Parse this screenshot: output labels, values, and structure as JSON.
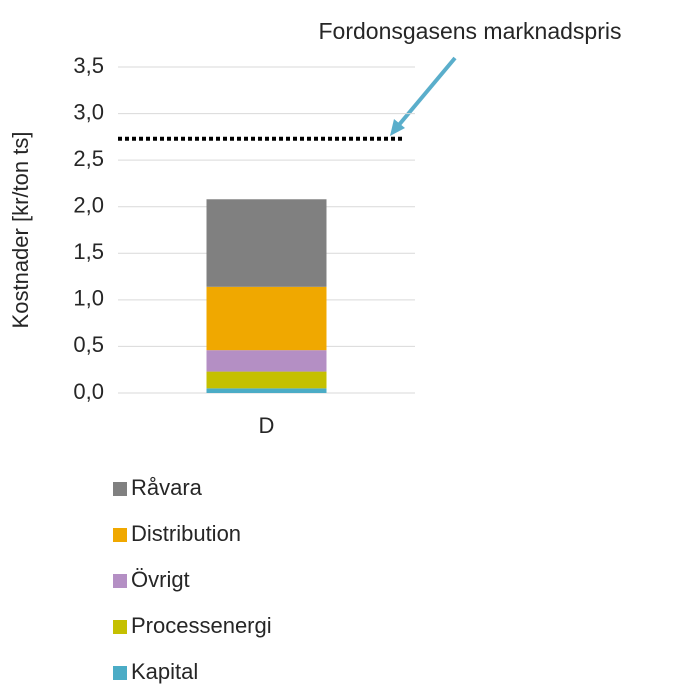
{
  "chart_data": {
    "type": "stacked_bar",
    "ylabel": "Kostnader [kr/ton ts]",
    "categories": [
      "D"
    ],
    "series": [
      {
        "name": "Kapital",
        "color": "#4bacc6",
        "values": [
          0.05
        ]
      },
      {
        "name": "Processenergi",
        "color": "#c5c000",
        "values": [
          0.18
        ]
      },
      {
        "name": "Övrigt",
        "color": "#b48fc4",
        "values": [
          0.23
        ]
      },
      {
        "name": "Distribution",
        "color": "#f0a800",
        "values": [
          0.68
        ]
      },
      {
        "name": "Råvara",
        "color": "#808080",
        "values": [
          0.94
        ]
      }
    ],
    "ylim": [
      0,
      3.5
    ],
    "yticks": [
      {
        "value": 0,
        "label": "0,0"
      },
      {
        "value": 0.5,
        "label": "0,5"
      },
      {
        "value": 1,
        "label": "1,0"
      },
      {
        "value": 1.5,
        "label": "1,5"
      },
      {
        "value": 2,
        "label": "2,0"
      },
      {
        "value": 2.5,
        "label": "2,5"
      },
      {
        "value": 3,
        "label": "3,0"
      },
      {
        "value": 3.5,
        "label": "3,5"
      }
    ],
    "grid": true,
    "reference_line": {
      "value": 2.73,
      "label": "Fordonsgasens marknadspris"
    }
  }
}
